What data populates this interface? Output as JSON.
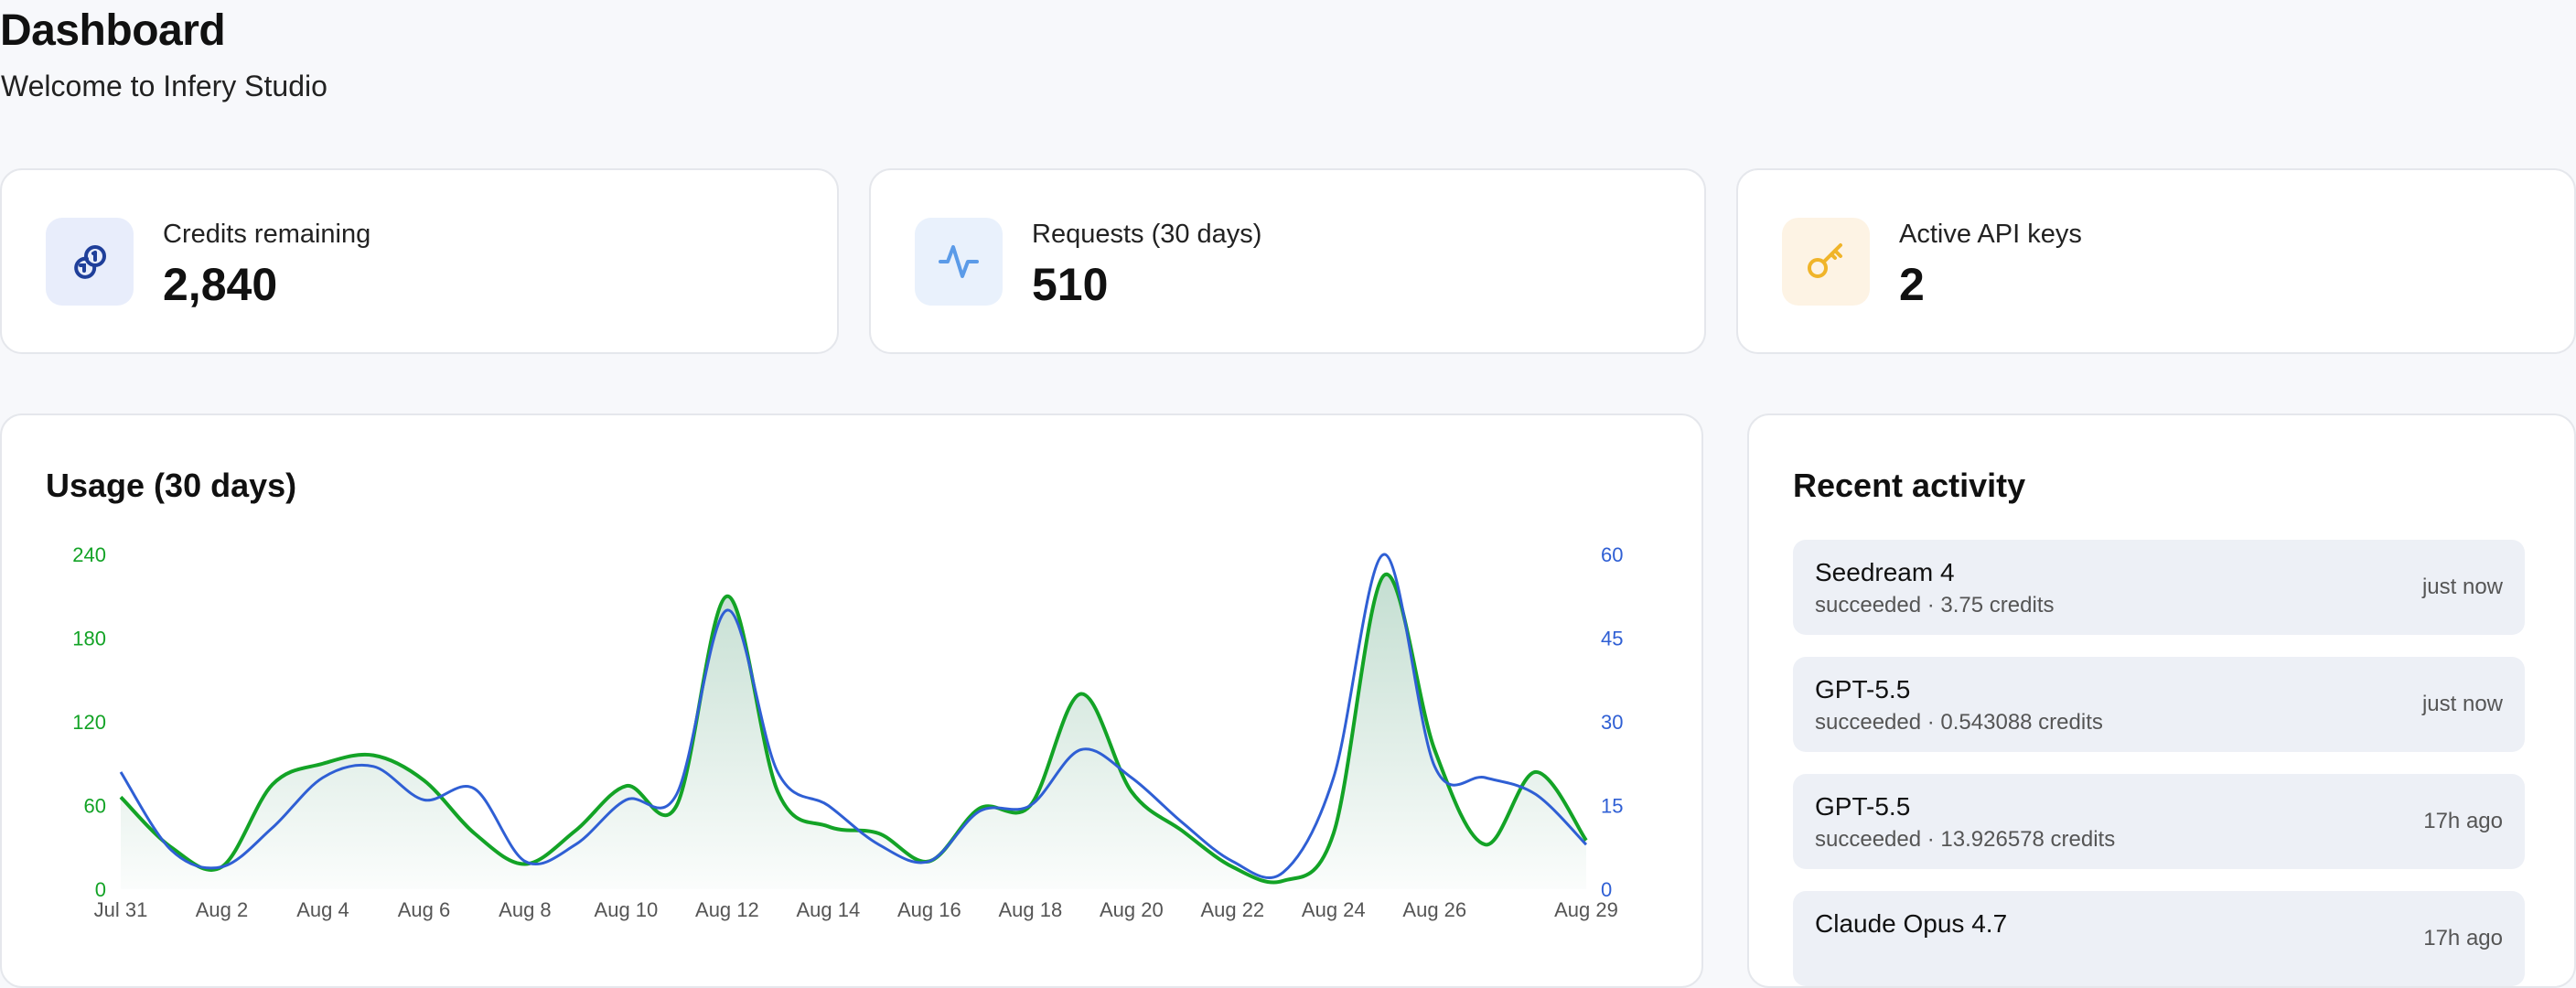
{
  "header": {
    "title": "Dashboard",
    "subtitle": "Welcome to Infery Studio"
  },
  "stats": [
    {
      "label": "Credits remaining",
      "value": "2,840",
      "icon": "coins-icon",
      "icon_bg": "#e8edfb",
      "icon_color": "#1f3f9a"
    },
    {
      "label": "Requests (30 days)",
      "value": "510",
      "icon": "activity-icon",
      "icon_bg": "#e9f1fc",
      "icon_color": "#5b9be8"
    },
    {
      "label": "Active API keys",
      "value": "2",
      "icon": "key-icon",
      "icon_bg": "#fdf3e4",
      "icon_color": "#f0b429"
    }
  ],
  "usage": {
    "title": "Usage (30 days)"
  },
  "chart_data": {
    "type": "line",
    "x": [
      "Jul 31",
      "Aug 1",
      "Aug 2",
      "Aug 3",
      "Aug 4",
      "Aug 5",
      "Aug 6",
      "Aug 7",
      "Aug 8",
      "Aug 9",
      "Aug 10",
      "Aug 11",
      "Aug 12",
      "Aug 13",
      "Aug 14",
      "Aug 15",
      "Aug 16",
      "Aug 17",
      "Aug 18",
      "Aug 19",
      "Aug 20",
      "Aug 21",
      "Aug 22",
      "Aug 23",
      "Aug 24",
      "Aug 25",
      "Aug 26",
      "Aug 27",
      "Aug 28",
      "Aug 29"
    ],
    "x_ticks": [
      "Jul 31",
      "Aug 2",
      "Aug 4",
      "Aug 6",
      "Aug 8",
      "Aug 10",
      "Aug 12",
      "Aug 14",
      "Aug 16",
      "Aug 18",
      "Aug 20",
      "Aug 22",
      "Aug 24",
      "Aug 26",
      "Aug 29"
    ],
    "series": [
      {
        "axis": "left",
        "color": "#13a326",
        "filled": true,
        "values": [
          66,
          30,
          16,
          75,
          90,
          96,
          78,
          40,
          18,
          42,
          74,
          60,
          210,
          70,
          45,
          40,
          20,
          58,
          60,
          140,
          70,
          42,
          16,
          6,
          40,
          225,
          100,
          32,
          84,
          35
        ]
      },
      {
        "axis": "right",
        "color": "#2f5fd4",
        "filled": false,
        "values": [
          21,
          7,
          4,
          11,
          20,
          22,
          16,
          18,
          5,
          8,
          16,
          17,
          50,
          21,
          15,
          8,
          5,
          14,
          15,
          25,
          20,
          12,
          5,
          3,
          20,
          60,
          22,
          20,
          17,
          8
        ]
      }
    ],
    "y_left": {
      "range": [
        0,
        240
      ],
      "ticks": [
        0,
        60,
        120,
        180,
        240
      ],
      "color": "#13a326"
    },
    "y_right": {
      "range": [
        0,
        60
      ],
      "ticks": [
        0,
        15,
        30,
        45,
        60
      ],
      "color": "#2f5fd4"
    },
    "grid": false,
    "legend": "none"
  },
  "activity": {
    "title": "Recent activity",
    "items": [
      {
        "model": "Seedream 4",
        "detail": "succeeded · 3.75 credits",
        "time": "just now"
      },
      {
        "model": "GPT-5.5",
        "detail": "succeeded · 0.543088 credits",
        "time": "just now"
      },
      {
        "model": "GPT-5.5",
        "detail": "succeeded · 13.926578 credits",
        "time": "17h ago"
      },
      {
        "model": "Claude Opus 4.7",
        "detail": "",
        "time": "17h ago"
      }
    ]
  }
}
